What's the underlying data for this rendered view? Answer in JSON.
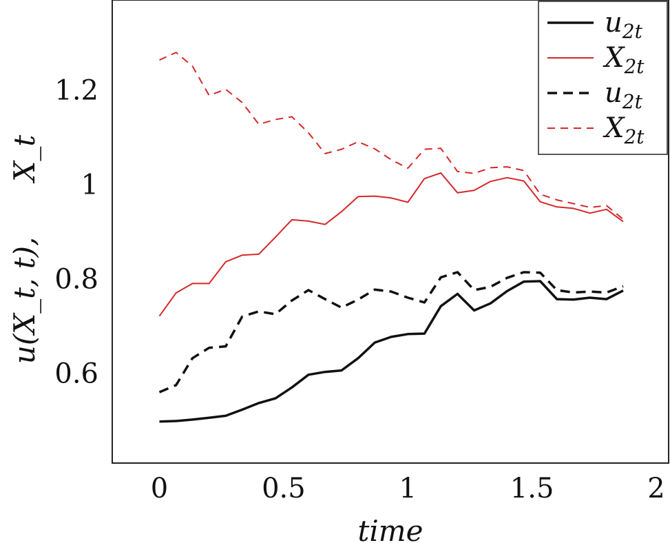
{
  "chart_data": {
    "type": "line",
    "xlabel": "time",
    "ylabel": "u(X_t, t),      X_t",
    "xlim": [
      -0.19,
      2.05
    ],
    "ylim": [
      0.41,
      1.39
    ],
    "x_ticks": [
      {
        "value": 0,
        "label": "0"
      },
      {
        "value": 0.5,
        "label": "0.5"
      },
      {
        "value": 1,
        "label": "1"
      },
      {
        "value": 1.5,
        "label": "1.5"
      },
      {
        "value": 2,
        "label": "2"
      }
    ],
    "y_ticks": [
      {
        "value": 0.6,
        "label": "0.6"
      },
      {
        "value": 0.8,
        "label": "0.8"
      },
      {
        "value": 1.0,
        "label": "1"
      },
      {
        "value": 1.2,
        "label": "1.2"
      }
    ],
    "grid": false,
    "legend_position": "top-right",
    "x": [
      0,
      0.067,
      0.133,
      0.2,
      0.267,
      0.333,
      0.4,
      0.467,
      0.533,
      0.6,
      0.667,
      0.733,
      0.8,
      0.867,
      0.933,
      1.0,
      1.067,
      1.133,
      1.2,
      1.267,
      1.333,
      1.4,
      1.467,
      1.533,
      1.6,
      1.667,
      1.733,
      1.8,
      1.867
    ],
    "series": [
      {
        "name": "u_2t",
        "color": "#111111",
        "dash": "solid",
        "values": [
          0.498,
          0.499,
          0.502,
          0.506,
          0.51,
          0.523,
          0.537,
          0.547,
          0.57,
          0.597,
          0.603,
          0.606,
          0.632,
          0.665,
          0.677,
          0.683,
          0.684,
          0.742,
          0.768,
          0.733,
          0.748,
          0.774,
          0.794,
          0.795,
          0.757,
          0.756,
          0.76,
          0.757,
          0.775
        ]
      },
      {
        "name": "X_2t",
        "color": "#d62728",
        "dash": "solid",
        "values": [
          0.721,
          0.77,
          0.79,
          0.79,
          0.836,
          0.85,
          0.852,
          0.888,
          0.925,
          0.922,
          0.915,
          0.942,
          0.974,
          0.975,
          0.971,
          0.962,
          1.012,
          1.024,
          0.982,
          0.987,
          1.006,
          1.014,
          1.007,
          0.963,
          0.952,
          0.949,
          0.939,
          0.947,
          0.921
        ]
      },
      {
        "name": "u_2t",
        "color": "#111111",
        "dash": "dashed",
        "values": [
          0.56,
          0.575,
          0.632,
          0.654,
          0.657,
          0.72,
          0.731,
          0.725,
          0.754,
          0.776,
          0.757,
          0.739,
          0.756,
          0.777,
          0.773,
          0.76,
          0.75,
          0.803,
          0.814,
          0.776,
          0.783,
          0.802,
          0.814,
          0.813,
          0.776,
          0.771,
          0.773,
          0.771,
          0.784
        ]
      },
      {
        "name": "X_2t",
        "color": "#d62728",
        "dash": "dashed",
        "values": [
          1.263,
          1.279,
          1.25,
          1.188,
          1.201,
          1.173,
          1.127,
          1.137,
          1.143,
          1.109,
          1.065,
          1.074,
          1.09,
          1.075,
          1.052,
          1.034,
          1.074,
          1.076,
          1.027,
          1.023,
          1.035,
          1.037,
          1.029,
          0.979,
          0.967,
          0.959,
          0.951,
          0.955,
          0.926
        ]
      }
    ]
  }
}
